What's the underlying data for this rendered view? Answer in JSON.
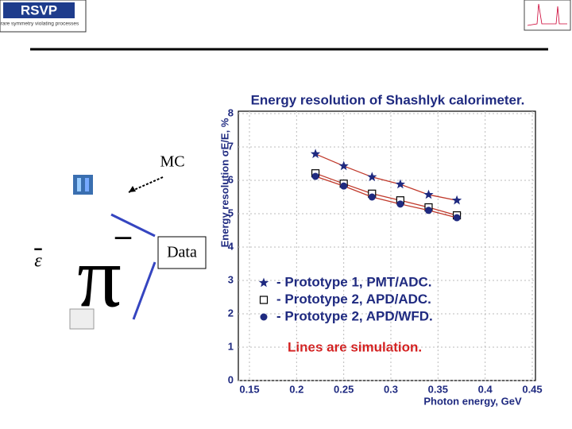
{
  "slide": {
    "logo": "RSVP",
    "logo_subtitle": "rare symmetry violating processes",
    "mc_label": "MC",
    "data_label": "Data",
    "pi": "π",
    "epsilon": "ε",
    "minus": "–"
  },
  "chart_data": {
    "type": "scatter",
    "title": "Energy resolution of Shashlyk calorimeter.",
    "x_label": "Photon energy, GeV",
    "y_label": "Energy resolution σE/E, %",
    "annotation": "Lines are simulation.",
    "x": [
      0.22,
      0.25,
      0.28,
      0.31,
      0.34,
      0.37
    ],
    "series": [
      {
        "name": "- Prototype 1, PMT/ADC.",
        "color": "#1f2a80",
        "marker": "star",
        "values": [
          6.79,
          6.43,
          6.1,
          5.88,
          5.57,
          5.4
        ]
      },
      {
        "name": "- Prototype 2, APD/ADC.",
        "color": "#000000",
        "marker": "square",
        "values": [
          6.21,
          5.9,
          5.6,
          5.4,
          5.19,
          4.95
        ]
      },
      {
        "name": "- Prototype 2, APD/WFD.",
        "color": "#1f2a80",
        "marker": "circle",
        "values": [
          6.12,
          5.83,
          5.5,
          5.29,
          5.1,
          4.88
        ]
      }
    ],
    "xlim": [
      0.15,
      0.45
    ],
    "xticks": [
      0.15,
      0.2,
      0.25,
      0.3,
      0.35,
      0.4,
      0.45
    ],
    "ylim": [
      0,
      8
    ],
    "yticks": [
      0,
      1,
      2,
      3,
      4,
      5,
      6,
      7,
      8
    ],
    "grid": true,
    "line_color": "#c0392b"
  }
}
